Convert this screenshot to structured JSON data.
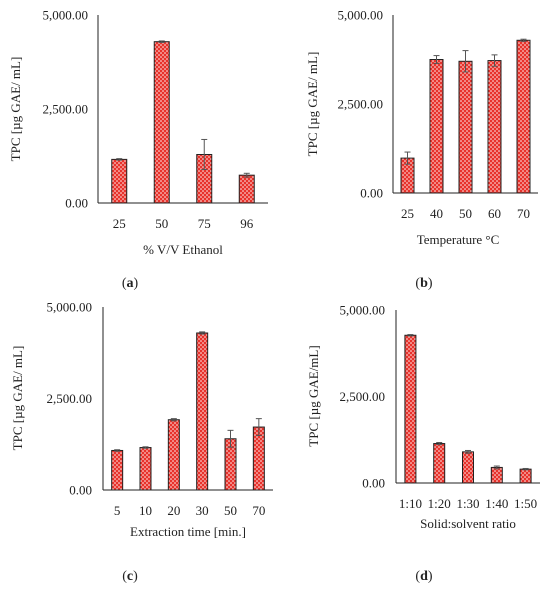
{
  "colors": {
    "bar_fill": "#e8322b",
    "bar_dot": "#ffffff",
    "bar_outline": "#222222",
    "axis": "#222222",
    "error_bar": "#555555"
  },
  "chart_data": [
    {
      "type": "bar",
      "panel": "a",
      "categories": [
        "25",
        "50",
        "75",
        "96"
      ],
      "series": [
        {
          "values": [
            1160,
            4290,
            1290,
            740
          ],
          "errors": [
            20,
            20,
            400,
            50
          ]
        }
      ],
      "xlabel": "% V/V Ethanol",
      "ylabel": "TPC [µg  GAE/ mL]",
      "ylim": [
        0,
        5000
      ],
      "yticks": [
        "5,000.00",
        "2,500.00",
        "0.00"
      ],
      "grid": false
    },
    {
      "type": "bar",
      "panel": "b",
      "categories": [
        "25",
        "40",
        "50",
        "60",
        "70"
      ],
      "series": [
        {
          "values": [
            980,
            3750,
            3700,
            3720,
            4290
          ],
          "errors": [
            170,
            110,
            300,
            160,
            30
          ]
        }
      ],
      "xlabel": "Temperature °C",
      "ylabel": "TPC [µg  GAE/ mL]",
      "ylim": [
        0,
        5000
      ],
      "yticks": [
        "5,000.00",
        "2,500.00",
        "0.00"
      ],
      "grid": false
    },
    {
      "type": "bar",
      "panel": "c",
      "categories": [
        "5",
        "10",
        "20",
        "30",
        "50",
        "70"
      ],
      "series": [
        {
          "values": [
            1080,
            1160,
            1920,
            4290,
            1400,
            1720
          ],
          "errors": [
            20,
            20,
            30,
            30,
            230,
            230
          ]
        }
      ],
      "xlabel": "Extraction time [min.]",
      "ylabel": "TPC [µg  GAE/ mL]",
      "ylim": [
        0,
        5000
      ],
      "yticks": [
        "5,000.00",
        "2,500.00",
        "0.00"
      ],
      "grid": false
    },
    {
      "type": "bar",
      "panel": "d",
      "categories": [
        "1:10",
        "1:20",
        "1:30",
        "1:40",
        "1:50"
      ],
      "series": [
        {
          "values": [
            4270,
            1140,
            900,
            450,
            400
          ],
          "errors": [
            20,
            30,
            40,
            40,
            20
          ]
        }
      ],
      "xlabel": "Solid:solvent ratio",
      "ylabel": "TPC [µg  GAE/mL]",
      "ylim": [
        0,
        5000
      ],
      "yticks": [
        "5,000.00",
        "2,500.00",
        "0.00"
      ],
      "grid": false
    }
  ]
}
